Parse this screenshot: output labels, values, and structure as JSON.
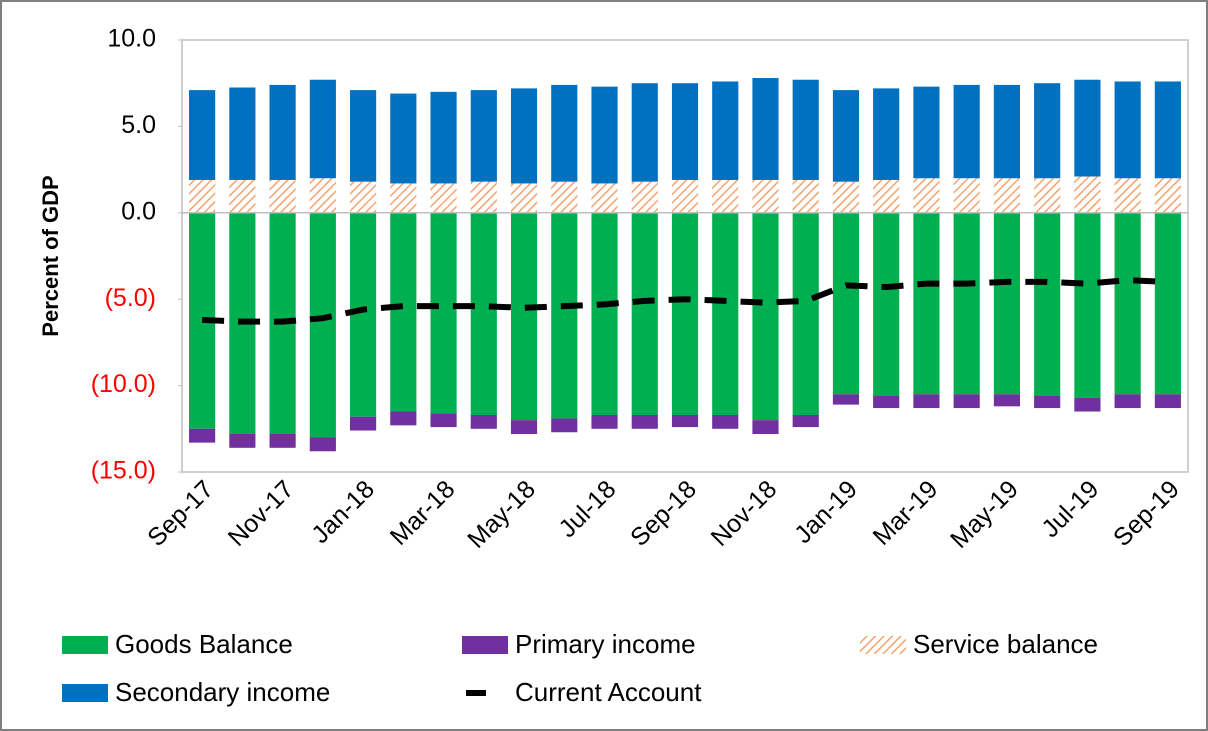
{
  "chart_data": {
    "type": "stacked_bar",
    "y_label": "Percent of GDP",
    "categories": [
      "Sep-17",
      null,
      "Nov-17",
      null,
      "Jan-18",
      null,
      "Mar-18",
      null,
      "May-18",
      null,
      "Jul-18",
      null,
      "Sep-18",
      null,
      "Nov-18",
      null,
      "Jan-19",
      null,
      "Mar-19",
      null,
      "May-19",
      null,
      "Jul-19",
      null,
      "Sep-19"
    ],
    "ylim": [
      -15,
      10
    ],
    "yticks": [
      {
        "value": 10,
        "label": "10.0"
      },
      {
        "value": 5,
        "label": "5.0"
      },
      {
        "value": 0,
        "label": "0.0"
      },
      {
        "value": -5,
        "label": "(5.0)"
      },
      {
        "value": -10,
        "label": "(10.0)"
      },
      {
        "value": -15,
        "label": "(15.0)"
      }
    ],
    "negative_tick_color": "#ff0000",
    "grid": false,
    "series": [
      {
        "name": "Goods Balance",
        "color": "#00b050",
        "values": [
          -12.5,
          -12.8,
          -12.8,
          -13.0,
          -11.8,
          -11.5,
          -11.6,
          -11.7,
          -12.0,
          -11.9,
          -11.7,
          -11.7,
          -11.7,
          -11.7,
          -12.0,
          -11.7,
          -10.5,
          -10.6,
          -10.5,
          -10.5,
          -10.5,
          -10.6,
          -10.7,
          -10.5,
          -10.5
        ]
      },
      {
        "name": "Primary income",
        "color": "#7030a0",
        "values": [
          -0.8,
          -0.8,
          -0.8,
          -0.8,
          -0.8,
          -0.8,
          -0.8,
          -0.8,
          -0.8,
          -0.8,
          -0.8,
          -0.8,
          -0.7,
          -0.8,
          -0.8,
          -0.7,
          -0.6,
          -0.7,
          -0.8,
          -0.8,
          -0.7,
          -0.7,
          -0.8,
          -0.8,
          -0.8
        ]
      },
      {
        "name": "Service balance",
        "color": "#f4a36c",
        "hatch": true,
        "values": [
          1.9,
          1.9,
          1.9,
          2.0,
          1.8,
          1.7,
          1.7,
          1.8,
          1.7,
          1.8,
          1.7,
          1.8,
          1.9,
          1.9,
          1.9,
          1.9,
          1.8,
          1.9,
          2.0,
          2.0,
          2.0,
          2.0,
          2.1,
          2.0,
          2.0
        ]
      },
      {
        "name": "Secondary income",
        "color": "#0070c0",
        "values": [
          5.2,
          5.35,
          5.5,
          5.7,
          5.3,
          5.2,
          5.3,
          5.3,
          5.5,
          5.6,
          5.6,
          5.7,
          5.6,
          5.7,
          5.9,
          5.8,
          5.3,
          5.3,
          5.3,
          5.4,
          5.4,
          5.5,
          5.6,
          5.6,
          5.6
        ]
      },
      {
        "name": "Current Account",
        "color": "#000000",
        "type": "line",
        "dashed": true,
        "values": [
          -6.2,
          -6.3,
          -6.3,
          -6.1,
          -5.6,
          -5.4,
          -5.4,
          -5.4,
          -5.5,
          -5.4,
          -5.3,
          -5.1,
          -5.0,
          -5.1,
          -5.2,
          -5.1,
          -4.2,
          -4.3,
          -4.1,
          -4.1,
          -4.0,
          -4.0,
          -4.1,
          -3.9,
          -4.0
        ]
      }
    ]
  }
}
